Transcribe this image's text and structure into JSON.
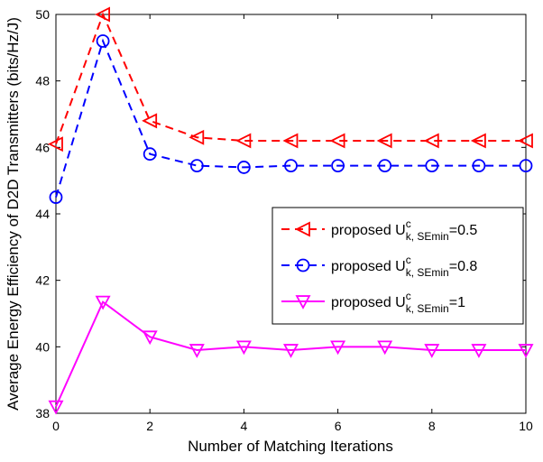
{
  "chart_data": {
    "type": "line",
    "xlabel": "Number of Matching Iterations",
    "ylabel": "Average Energy Efficiency of D2D Transmitters (bits/Hz/J)",
    "xlim": [
      0,
      10
    ],
    "ylim": [
      38,
      50
    ],
    "xticks": [
      0,
      2,
      4,
      6,
      8,
      10
    ],
    "yticks": [
      38,
      40,
      42,
      44,
      46,
      48,
      50
    ],
    "grid": false,
    "legend_position": "right-center",
    "x": [
      0,
      1,
      2,
      3,
      4,
      5,
      6,
      7,
      8,
      9,
      10
    ],
    "series": [
      {
        "name": "proposed U^c_{k, SEmin}=0.5",
        "legend": {
          "prefix": "proposed U",
          "sup": "c",
          "sub": "k, SEmin",
          "suffix": "=0.5"
        },
        "color": "#ff0000",
        "dash": "dashed",
        "marker": "triangle-left",
        "values": [
          46.1,
          50.0,
          46.8,
          46.3,
          46.2,
          46.2,
          46.2,
          46.2,
          46.2,
          46.2,
          46.2
        ]
      },
      {
        "name": "proposed U^c_{k, SEmin}=0.8",
        "legend": {
          "prefix": "proposed U",
          "sup": "c",
          "sub": "k, SEmin",
          "suffix": "=0.8"
        },
        "color": "#0000ff",
        "dash": "dashed",
        "marker": "circle",
        "values": [
          44.5,
          49.2,
          45.8,
          45.45,
          45.4,
          45.45,
          45.45,
          45.45,
          45.45,
          45.45,
          45.45
        ]
      },
      {
        "name": "proposed U^c_{k, SEmin}=1",
        "legend": {
          "prefix": "proposed U",
          "sup": "c",
          "sub": "k, SEmin",
          "suffix": "=1"
        },
        "color": "#ff00ff",
        "dash": "solid",
        "marker": "triangle-down",
        "values": [
          38.2,
          41.35,
          40.3,
          39.9,
          40.0,
          39.9,
          40.0,
          40.0,
          39.9,
          39.9,
          39.9
        ]
      }
    ]
  }
}
